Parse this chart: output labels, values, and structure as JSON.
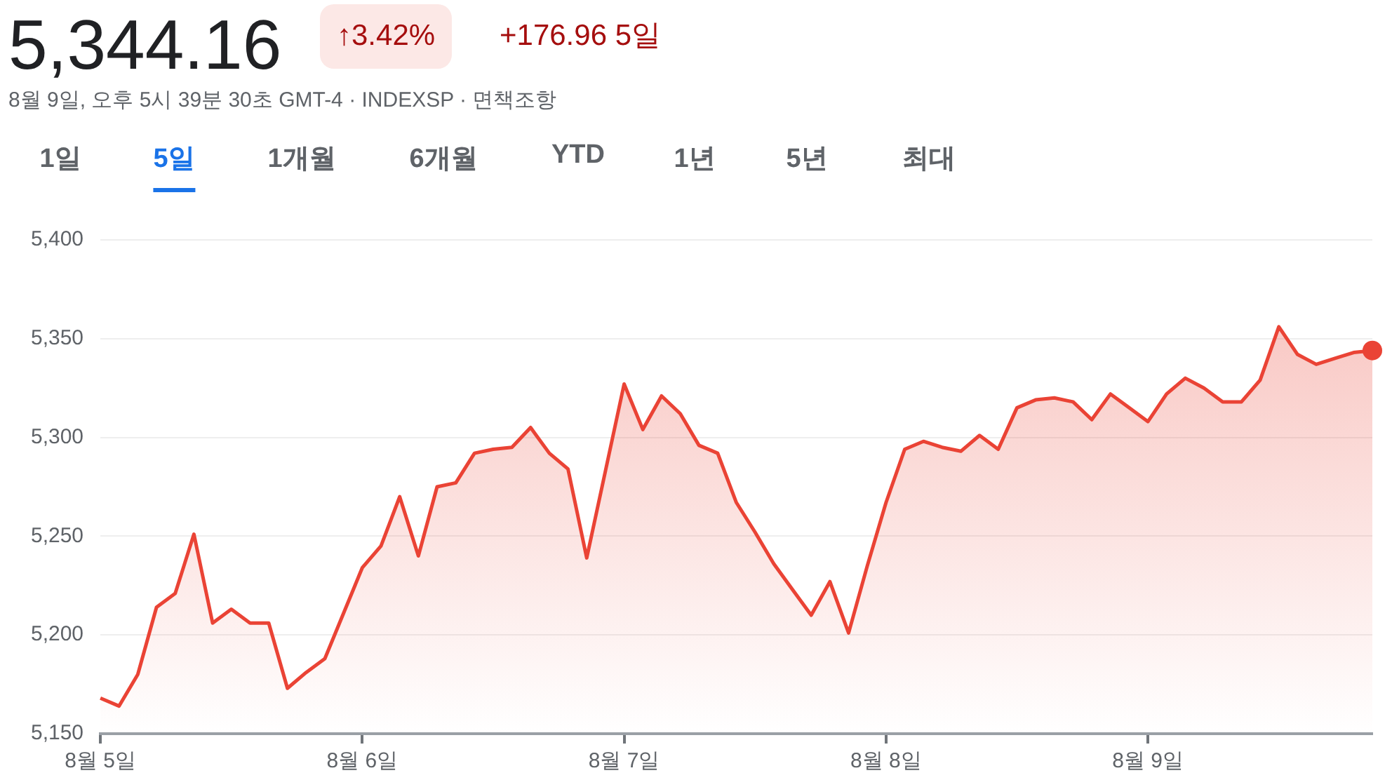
{
  "chart_data": {
    "type": "area",
    "title": "5,344.16",
    "subtitle": "8월 9일, 오후 5시 39분 30초 GMT-4 · INDEXSP · 면책조항",
    "annotations": [
      "↑3.42%",
      "+176.96 5일",
      "1일",
      "5일",
      "1개월",
      "6개월",
      "YTD",
      "1년",
      "5년",
      "최대"
    ],
    "categories": [
      "8월 5일",
      null,
      null,
      null,
      null,
      null,
      null,
      null,
      null,
      null,
      null,
      null,
      null,
      null,
      "8월 6일",
      null,
      null,
      null,
      null,
      null,
      null,
      null,
      null,
      null,
      null,
      null,
      null,
      null,
      "8월 7일",
      null,
      null,
      null,
      null,
      null,
      null,
      null,
      null,
      null,
      null,
      null,
      null,
      null,
      "8월 8일",
      null,
      null,
      null,
      null,
      null,
      null,
      null,
      null,
      null,
      null,
      null,
      null,
      null,
      "8월 9일",
      null,
      null,
      null,
      null,
      null,
      null,
      null,
      null,
      null,
      null,
      null,
      null
    ],
    "series": [
      {
        "color": "#ea4335",
        "values": [
          5168,
          5164,
          5180,
          5214,
          5221,
          5251,
          5206,
          5213,
          5206,
          5206,
          5173,
          5181,
          5188,
          5211,
          5234,
          5245,
          5270,
          5240,
          5275,
          5277,
          5292,
          5294,
          5295,
          5305,
          5292,
          5284,
          5239,
          5283,
          5327,
          5304,
          5321,
          5312,
          5296,
          5292,
          5267,
          5252,
          5236,
          5223,
          5210,
          5227,
          5201,
          5235,
          5267,
          5294,
          5298,
          5295,
          5293,
          5301,
          5294,
          5315,
          5319,
          5320,
          5318,
          5309,
          5322,
          5315,
          5308,
          5322,
          5330,
          5325,
          5318,
          5318,
          5329,
          5356,
          5342,
          5337,
          5340,
          5343,
          5344
        ]
      }
    ],
    "ylim": [
      5150,
      5400
    ],
    "yticks": [
      {
        "value": 5150,
        "label": "5,150"
      },
      {
        "value": 5200,
        "label": "5,200"
      },
      {
        "value": 5250,
        "label": "5,250"
      },
      {
        "value": 5300,
        "label": "5,300"
      },
      {
        "value": 5350,
        "label": "5,350"
      },
      {
        "value": 5400,
        "label": "5,400"
      }
    ],
    "grid": "y",
    "legend": false
  }
}
